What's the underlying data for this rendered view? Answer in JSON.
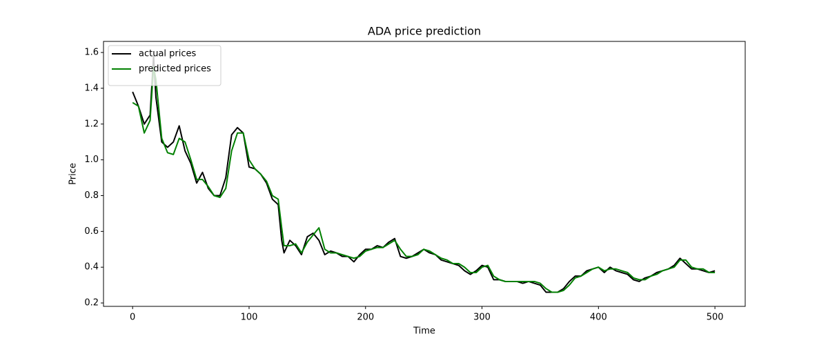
{
  "chart_data": {
    "type": "line",
    "title": "ADA price prediction",
    "x_label": "Time",
    "y_label": "Price",
    "x": [
      0,
      5,
      10,
      15,
      18,
      20,
      25,
      30,
      35,
      40,
      45,
      50,
      55,
      60,
      65,
      70,
      75,
      80,
      85,
      90,
      95,
      100,
      105,
      110,
      115,
      120,
      125,
      128,
      130,
      135,
      140,
      145,
      150,
      155,
      160,
      165,
      170,
      175,
      180,
      185,
      190,
      195,
      200,
      205,
      210,
      215,
      220,
      225,
      230,
      235,
      240,
      245,
      250,
      255,
      260,
      265,
      270,
      275,
      280,
      285,
      290,
      295,
      300,
      305,
      310,
      315,
      320,
      325,
      330,
      335,
      340,
      345,
      350,
      355,
      360,
      365,
      370,
      375,
      380,
      385,
      390,
      395,
      400,
      405,
      410,
      415,
      420,
      425,
      430,
      435,
      440,
      445,
      450,
      455,
      460,
      465,
      470,
      475,
      480,
      485,
      490,
      495,
      500
    ],
    "series": [
      {
        "name": "actual prices",
        "color": "#000000",
        "values": [
          1.38,
          1.3,
          1.2,
          1.25,
          1.58,
          1.35,
          1.1,
          1.07,
          1.1,
          1.19,
          1.05,
          0.98,
          0.87,
          0.93,
          0.84,
          0.8,
          0.8,
          0.9,
          1.14,
          1.18,
          1.15,
          0.96,
          0.95,
          0.92,
          0.87,
          0.78,
          0.75,
          0.55,
          0.48,
          0.55,
          0.52,
          0.47,
          0.57,
          0.59,
          0.55,
          0.47,
          0.49,
          0.48,
          0.46,
          0.46,
          0.43,
          0.47,
          0.5,
          0.5,
          0.52,
          0.51,
          0.54,
          0.56,
          0.46,
          0.45,
          0.46,
          0.48,
          0.5,
          0.48,
          0.47,
          0.44,
          0.43,
          0.42,
          0.41,
          0.38,
          0.36,
          0.38,
          0.41,
          0.4,
          0.33,
          0.33,
          0.32,
          0.32,
          0.32,
          0.31,
          0.32,
          0.31,
          0.3,
          0.26,
          0.26,
          0.26,
          0.28,
          0.32,
          0.35,
          0.35,
          0.38,
          0.39,
          0.4,
          0.37,
          0.4,
          0.38,
          0.37,
          0.36,
          0.33,
          0.32,
          0.34,
          0.35,
          0.37,
          0.38,
          0.39,
          0.41,
          0.45,
          0.42,
          0.39,
          0.39,
          0.38,
          0.37,
          0.38
        ]
      },
      {
        "name": "predicted prices",
        "color": "#008000",
        "values": [
          1.32,
          1.3,
          1.15,
          1.22,
          1.52,
          1.45,
          1.12,
          1.04,
          1.03,
          1.12,
          1.1,
          1.0,
          0.89,
          0.89,
          0.85,
          0.8,
          0.79,
          0.84,
          1.05,
          1.15,
          1.15,
          1.0,
          0.95,
          0.92,
          0.88,
          0.8,
          0.78,
          0.62,
          0.52,
          0.52,
          0.53,
          0.48,
          0.54,
          0.58,
          0.62,
          0.5,
          0.48,
          0.48,
          0.47,
          0.46,
          0.45,
          0.46,
          0.49,
          0.5,
          0.51,
          0.51,
          0.53,
          0.55,
          0.5,
          0.46,
          0.46,
          0.47,
          0.5,
          0.49,
          0.47,
          0.45,
          0.44,
          0.42,
          0.42,
          0.4,
          0.37,
          0.37,
          0.4,
          0.41,
          0.35,
          0.33,
          0.32,
          0.32,
          0.32,
          0.32,
          0.32,
          0.32,
          0.31,
          0.28,
          0.26,
          0.26,
          0.27,
          0.3,
          0.34,
          0.35,
          0.37,
          0.39,
          0.4,
          0.38,
          0.39,
          0.39,
          0.38,
          0.37,
          0.34,
          0.33,
          0.33,
          0.35,
          0.36,
          0.38,
          0.39,
          0.4,
          0.44,
          0.44,
          0.4,
          0.39,
          0.39,
          0.37,
          0.37
        ]
      }
    ],
    "xlim": [
      -25,
      526
    ],
    "ylim": [
      0.181,
      1.662
    ],
    "xticks": [
      0,
      100,
      200,
      300,
      400,
      500
    ],
    "yticks": [
      0.2,
      0.4,
      0.6,
      0.8,
      {
        "value": 1,
        "label": "1.0"
      },
      1.2,
      1.4,
      1.6
    ],
    "grid": false,
    "legend": "upper-left"
  }
}
